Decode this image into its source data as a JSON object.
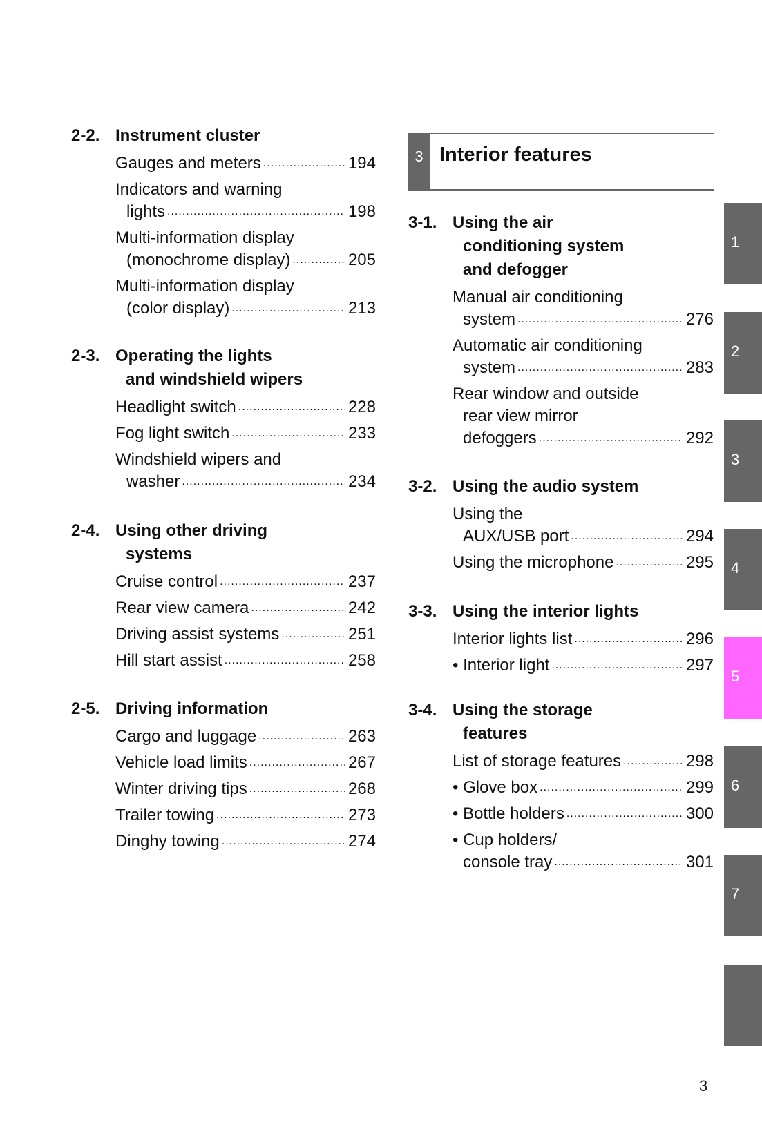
{
  "chapter": {
    "number": "3",
    "title": "Interior features"
  },
  "left_sections": [
    {
      "number": "2-2.",
      "title": [
        "Instrument cluster"
      ],
      "items": [
        {
          "lines": [
            "Gauges and meters"
          ],
          "page": "194"
        },
        {
          "lines": [
            "Indicators and warning",
            "lights"
          ],
          "page": "198"
        },
        {
          "lines": [
            "Multi-information display",
            "(monochrome display)"
          ],
          "page": "205"
        },
        {
          "lines": [
            "Multi-information display",
            "(color display)"
          ],
          "page": "213"
        }
      ]
    },
    {
      "number": "2-3.",
      "title": [
        "Operating the lights",
        "and windshield wipers"
      ],
      "items": [
        {
          "lines": [
            "Headlight switch"
          ],
          "page": "228"
        },
        {
          "lines": [
            "Fog light switch"
          ],
          "page": "233"
        },
        {
          "lines": [
            "Windshield wipers and",
            "washer"
          ],
          "page": "234"
        }
      ]
    },
    {
      "number": "2-4.",
      "title": [
        "Using other driving",
        "systems"
      ],
      "items": [
        {
          "lines": [
            "Cruise control"
          ],
          "page": "237"
        },
        {
          "lines": [
            "Rear view camera"
          ],
          "page": "242"
        },
        {
          "lines": [
            "Driving assist systems"
          ],
          "page": "251"
        },
        {
          "lines": [
            "Hill start assist"
          ],
          "page": "258"
        }
      ]
    },
    {
      "number": "2-5.",
      "title": [
        "Driving information"
      ],
      "items": [
        {
          "lines": [
            "Cargo and luggage"
          ],
          "page": "263"
        },
        {
          "lines": [
            "Vehicle load limits"
          ],
          "page": "267"
        },
        {
          "lines": [
            "Winter driving tips"
          ],
          "page": "268"
        },
        {
          "lines": [
            "Trailer towing"
          ],
          "page": "273"
        },
        {
          "lines": [
            "Dinghy towing"
          ],
          "page": "274"
        }
      ]
    }
  ],
  "right_sections": [
    {
      "number": "3-1.",
      "title": [
        "Using the air",
        "conditioning system",
        "and defogger"
      ],
      "items": [
        {
          "lines": [
            "Manual air conditioning",
            "system"
          ],
          "page": "276"
        },
        {
          "lines": [
            "Automatic air conditioning",
            "system"
          ],
          "page": "283"
        },
        {
          "lines": [
            "Rear window and outside",
            "rear view mirror",
            "defoggers"
          ],
          "page": "292"
        }
      ]
    },
    {
      "number": "3-2.",
      "title": [
        "Using the audio system"
      ],
      "items": [
        {
          "lines": [
            "Using the",
            "AUX/USB port"
          ],
          "page": "294"
        },
        {
          "lines": [
            "Using the microphone"
          ],
          "page": "295"
        }
      ]
    },
    {
      "number": "3-3.",
      "title": [
        "Using the interior lights"
      ],
      "items": [
        {
          "lines": [
            "Interior lights list"
          ],
          "page": "296"
        },
        {
          "lines": [
            "• Interior light"
          ],
          "page": "297"
        }
      ]
    },
    {
      "number": "3-4.",
      "title": [
        "Using the storage",
        "features"
      ],
      "items": [
        {
          "lines": [
            "List of storage features"
          ],
          "page": "298"
        },
        {
          "lines": [
            "• Glove box"
          ],
          "page": "299"
        },
        {
          "lines": [
            "• Bottle holders"
          ],
          "page": "300"
        },
        {
          "lines": [
            "• Cup holders/",
            "console tray"
          ],
          "page": "301"
        }
      ]
    }
  ],
  "tabs": [
    {
      "label": "1"
    },
    {
      "label": "2"
    },
    {
      "label": "3"
    },
    {
      "label": "4"
    },
    {
      "label": "5",
      "active": true
    },
    {
      "label": "6"
    },
    {
      "label": "7"
    },
    {
      "label": ""
    }
  ],
  "colors": {
    "tab": "#666666",
    "active_tab": "#ff66ff"
  },
  "page_number": "3"
}
